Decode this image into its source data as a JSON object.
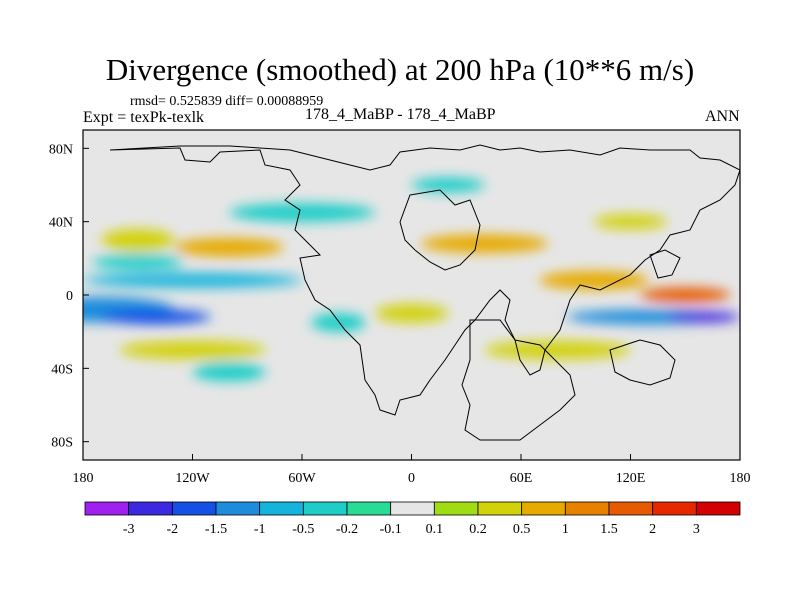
{
  "chart_data": {
    "type": "heatmap",
    "title": "Divergence (smoothed) at 200 hPa (10**6 m/s)",
    "stats_line": "rmsd= 0.525839 diff= 0.00088959",
    "left_label": "Expt = texPk-texlk",
    "center_label": "178_4_MaBP - 178_4_MaBP",
    "right_label": "ANN",
    "xlim": [
      -180,
      180
    ],
    "ylim": [
      -90,
      90
    ],
    "x_ticks": [
      {
        "value": -180,
        "label": "180"
      },
      {
        "value": -120,
        "label": "120W"
      },
      {
        "value": -60,
        "label": "60W"
      },
      {
        "value": 0,
        "label": "0"
      },
      {
        "value": 60,
        "label": "60E"
      },
      {
        "value": 120,
        "label": "120E"
      },
      {
        "value": 180,
        "label": "180"
      }
    ],
    "y_ticks": [
      {
        "value": 80,
        "label": "80N"
      },
      {
        "value": 40,
        "label": "40N"
      },
      {
        "value": 0,
        "label": "0"
      },
      {
        "value": -40,
        "label": "40S"
      },
      {
        "value": -80,
        "label": "80S"
      }
    ],
    "colorbar": {
      "labels": [
        "-3",
        "-2",
        "-1.5",
        "-1",
        "-0.5",
        "-0.2",
        "-0.1",
        "0.1",
        "0.2",
        "0.5",
        "1",
        "1.5",
        "2",
        "3"
      ],
      "colors": [
        "#a020f0",
        "#3c28e0",
        "#1450e6",
        "#1e8cdc",
        "#14b4dc",
        "#1ecdc8",
        "#28dc96",
        "#e6e6e6",
        "#a0dc14",
        "#d2d20a",
        "#e6aa00",
        "#e68200",
        "#e65a00",
        "#e62800",
        "#d20000"
      ]
    },
    "field": [
      {
        "lon": -180,
        "lat": 0,
        "lon_span": 360,
        "lat_span": 180,
        "value": 0
      },
      {
        "lon": -150,
        "lat": 30,
        "lon_span": 40,
        "lat_span": 12,
        "value": 0.4
      },
      {
        "lon": -100,
        "lat": 26,
        "lon_span": 60,
        "lat_span": 10,
        "value": 0.6
      },
      {
        "lon": -150,
        "lat": 18,
        "lon_span": 50,
        "lat_span": 8,
        "value": -0.3
      },
      {
        "lon": -120,
        "lat": 8,
        "lon_span": 120,
        "lat_span": 8,
        "value": -0.6
      },
      {
        "lon": -170,
        "lat": -8,
        "lon_span": 80,
        "lat_span": 14,
        "value": -1.2
      },
      {
        "lon": -140,
        "lat": -12,
        "lon_span": 60,
        "lat_span": 8,
        "value": -1.6
      },
      {
        "lon": -120,
        "lat": -30,
        "lon_span": 80,
        "lat_span": 10,
        "value": 0.3
      },
      {
        "lon": -100,
        "lat": -42,
        "lon_span": 40,
        "lat_span": 10,
        "value": -0.3
      },
      {
        "lon": -60,
        "lat": 45,
        "lon_span": 80,
        "lat_span": 10,
        "value": -0.4
      },
      {
        "lon": 40,
        "lat": 28,
        "lon_span": 70,
        "lat_span": 10,
        "value": 0.6
      },
      {
        "lon": 100,
        "lat": 8,
        "lon_span": 60,
        "lat_span": 10,
        "value": 0.8
      },
      {
        "lon": 150,
        "lat": 0,
        "lon_span": 50,
        "lat_span": 8,
        "value": 1.7
      },
      {
        "lon": 130,
        "lat": -12,
        "lon_span": 90,
        "lat_span": 8,
        "value": -1.2
      },
      {
        "lon": 160,
        "lat": -12,
        "lon_span": 40,
        "lat_span": 6,
        "value": -2.2
      },
      {
        "lon": 80,
        "lat": -30,
        "lon_span": 80,
        "lat_span": 10,
        "value": 0.3
      },
      {
        "lon": 0,
        "lat": -10,
        "lon_span": 40,
        "lat_span": 10,
        "value": 0.4
      },
      {
        "lon": -40,
        "lat": -15,
        "lon_span": 30,
        "lat_span": 10,
        "value": -0.4
      },
      {
        "lon": 20,
        "lat": 60,
        "lon_span": 40,
        "lat_span": 8,
        "value": -0.3
      },
      {
        "lon": 120,
        "lat": 40,
        "lon_span": 40,
        "lat_span": 8,
        "value": 0.4
      }
    ]
  }
}
